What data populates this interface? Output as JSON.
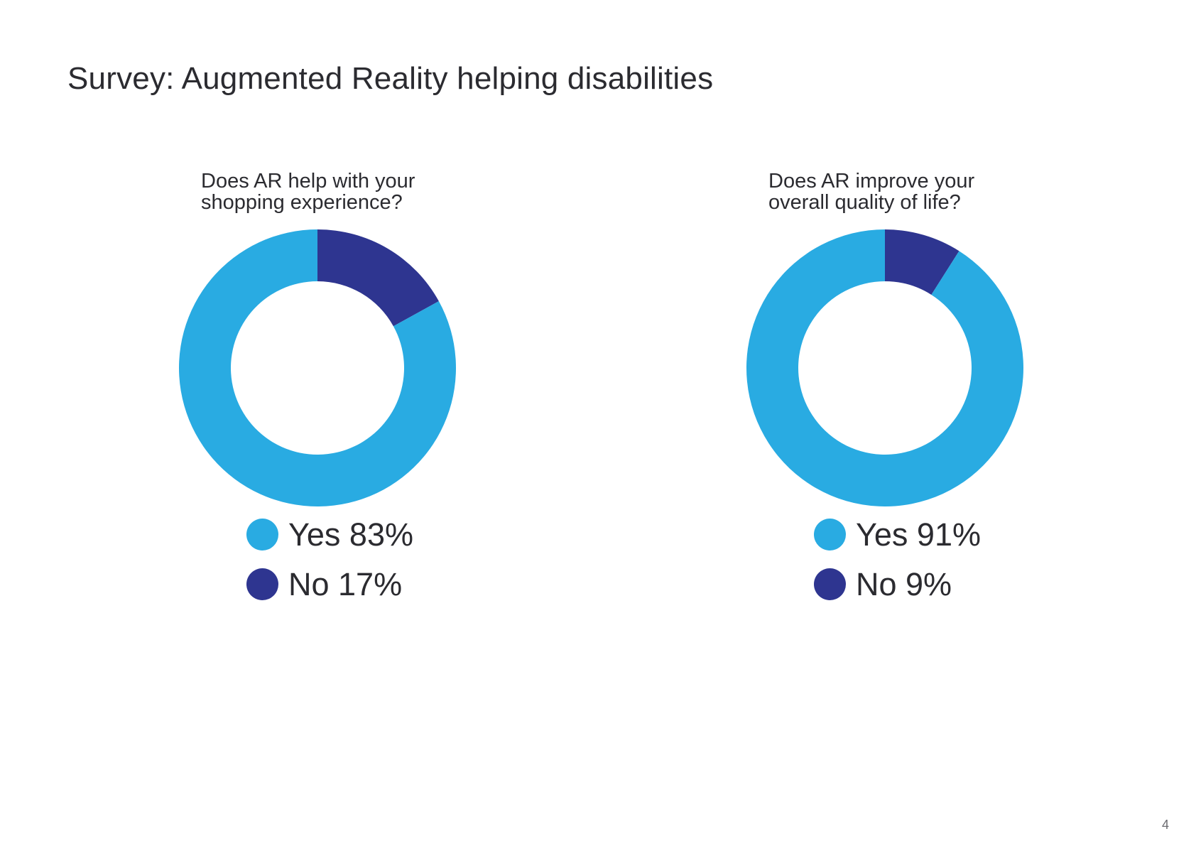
{
  "page": {
    "title": "Survey: Augmented Reality helping disabilities",
    "page_number": "4"
  },
  "colors": {
    "yes": "#29abe2",
    "no": "#2e3590"
  },
  "chart_data": [
    {
      "type": "pie",
      "title": "Does AR help with your\nshopping experience?",
      "categories": [
        "Yes",
        "No"
      ],
      "values": [
        83,
        17
      ],
      "legend": [
        "Yes 83%",
        "No 17%"
      ],
      "legend_position": "bottom"
    },
    {
      "type": "pie",
      "title": "Does AR improve your\noverall quality of life?",
      "categories": [
        "Yes",
        "No"
      ],
      "values": [
        91,
        9
      ],
      "legend": [
        "Yes 91%",
        "No 9%"
      ],
      "legend_position": "bottom"
    }
  ]
}
